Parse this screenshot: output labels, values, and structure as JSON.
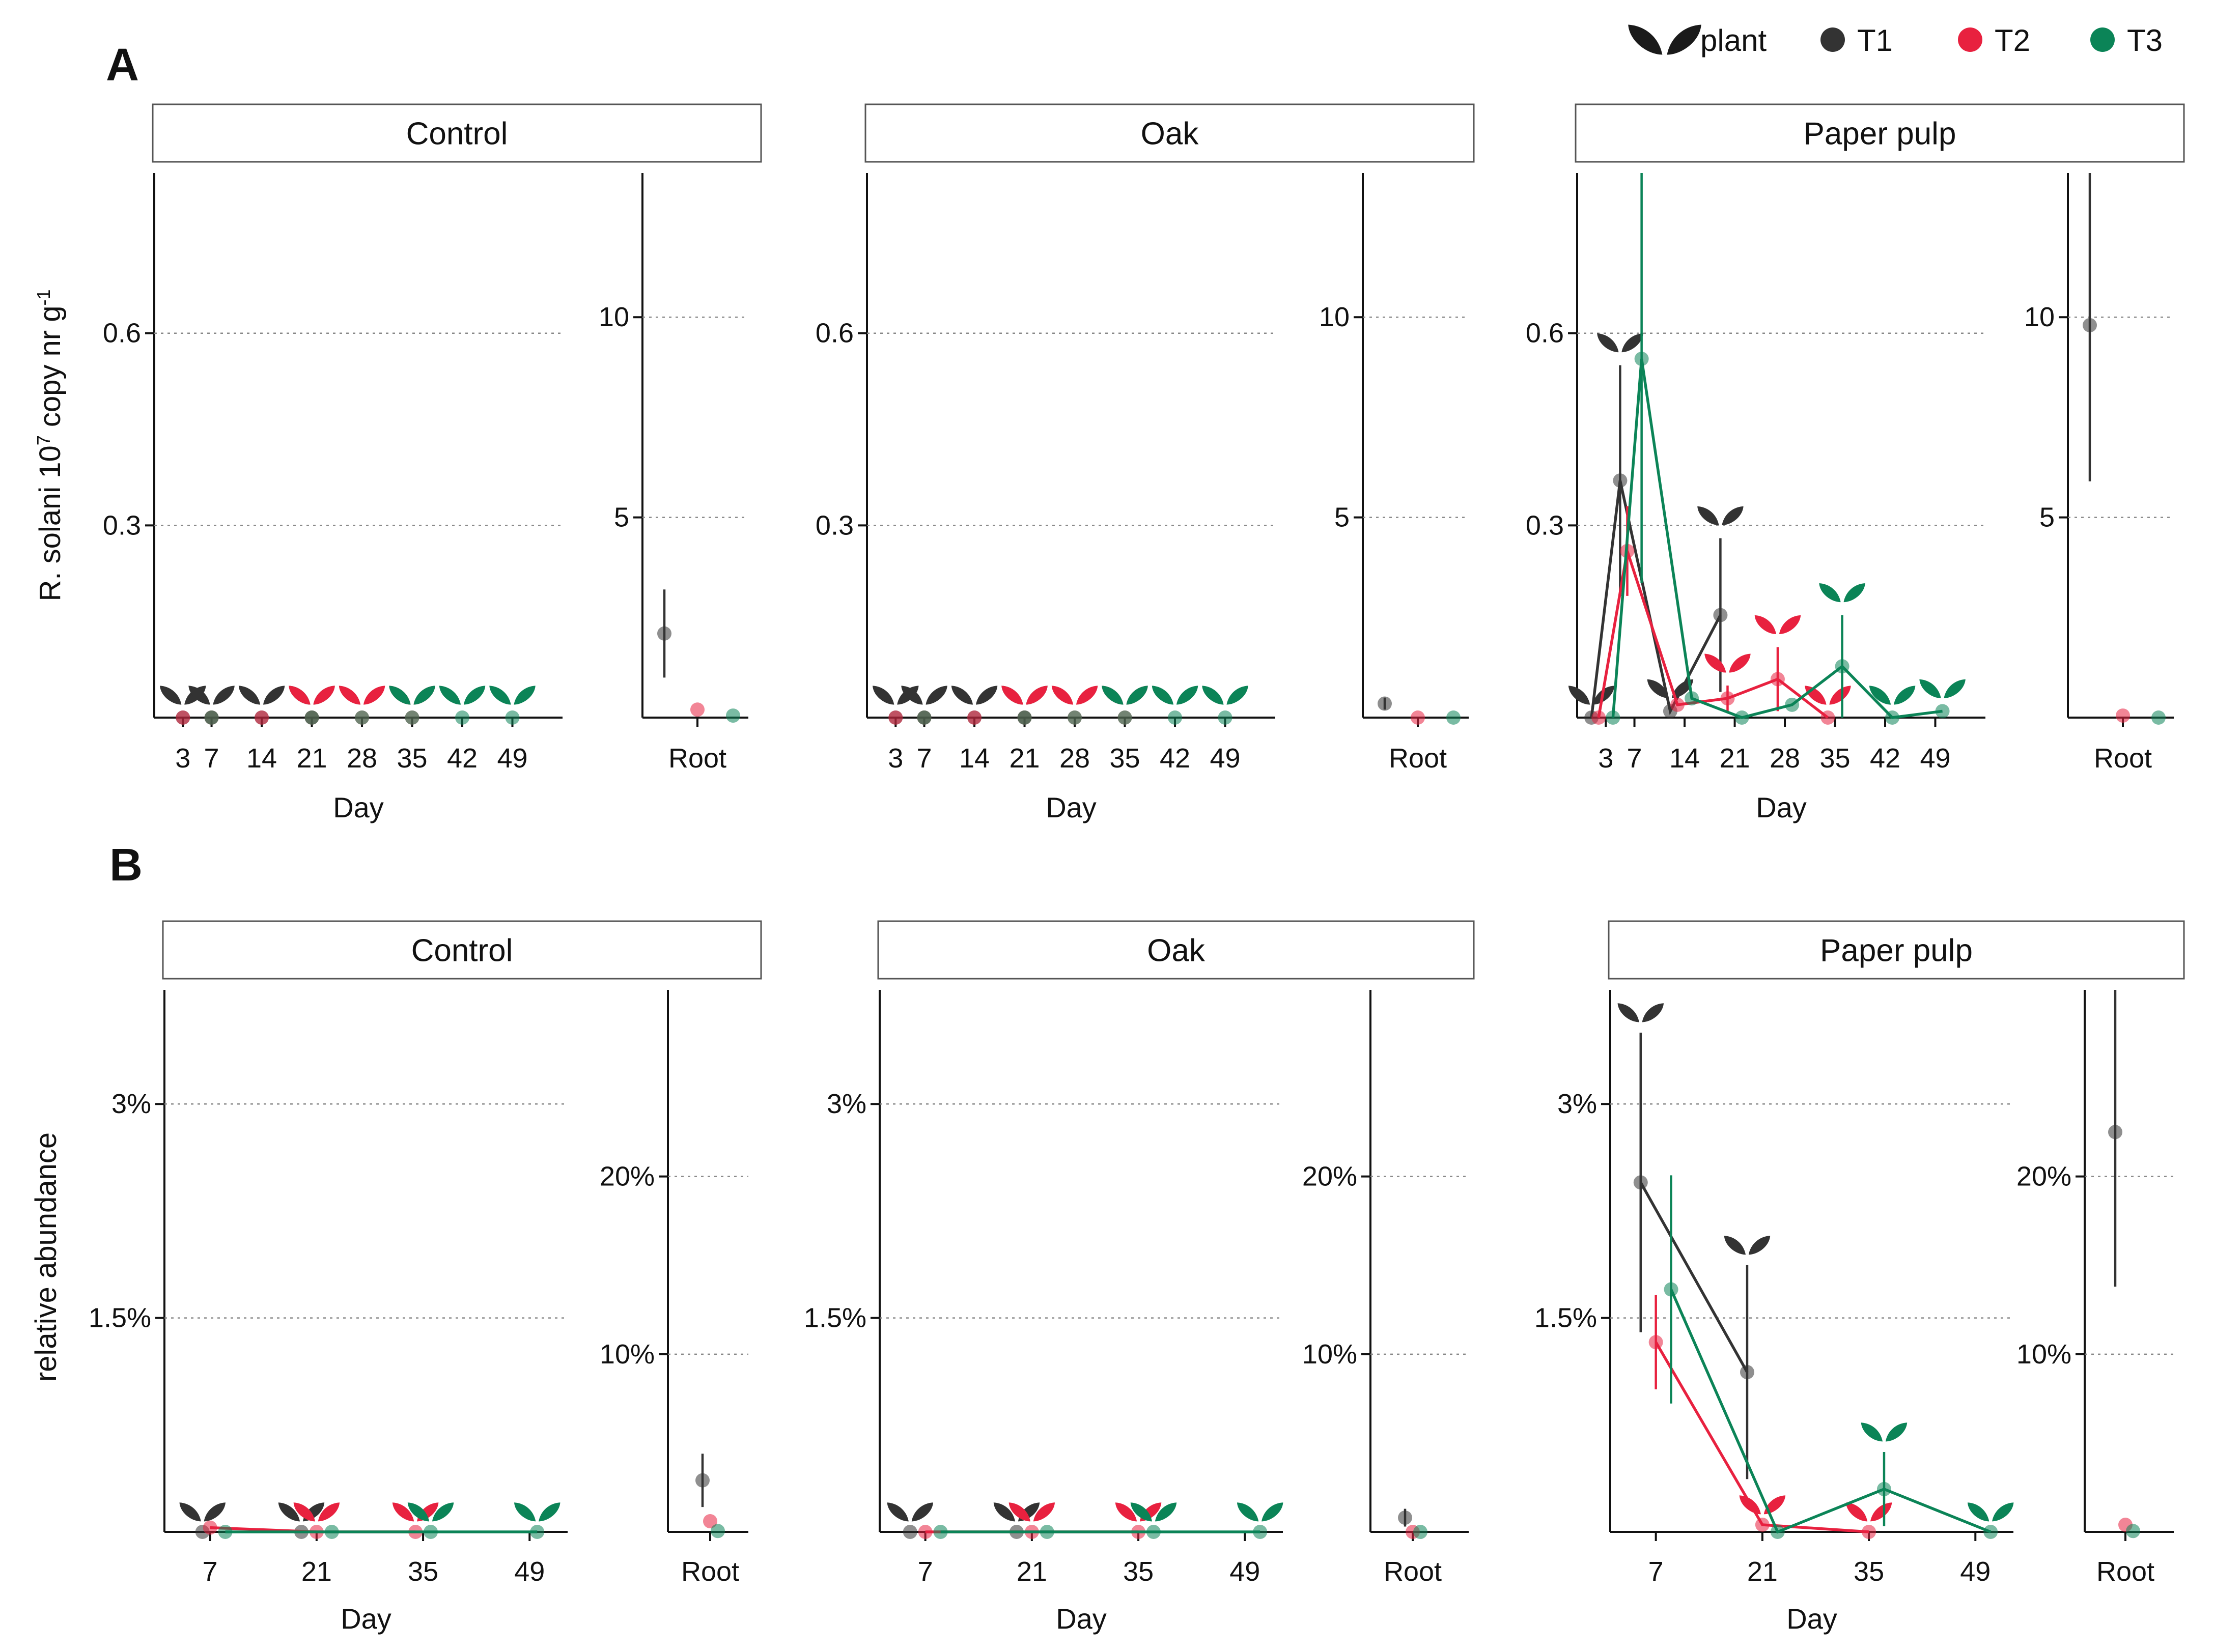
{
  "legend": {
    "items": [
      {
        "label": "plant",
        "kind": "plant",
        "color": "#1a1a1a"
      },
      {
        "label": "T1",
        "kind": "dot",
        "color": "#333333"
      },
      {
        "label": "T2",
        "kind": "dot",
        "color": "#e8213f"
      },
      {
        "label": "T3",
        "kind": "dot",
        "color": "#0b8457"
      }
    ]
  },
  "colors": {
    "T1": "#333333",
    "T2": "#e8213f",
    "T3": "#0b8457",
    "axis": "#111111",
    "grid": "#888888",
    "strip_bg": "#ffffff",
    "strip_border": "#555555"
  },
  "chart_data": [
    {
      "panel": "A",
      "type": "line",
      "ylabel": "R. solani 10^7 copy nr g^-1",
      "xlabel": "Day",
      "day_ticks": [
        3,
        7,
        14,
        21,
        28,
        35,
        42,
        49
      ],
      "day_range": [
        -1,
        56
      ],
      "day_ylim": [
        0,
        0.85
      ],
      "day_yticks": [
        0.3,
        0.6
      ],
      "day_ytick_labels": [
        "0.3",
        "0.6"
      ],
      "root_label": "Root",
      "root_ylim": [
        0,
        13.6
      ],
      "root_yticks": [
        5,
        10
      ],
      "root_ytick_labels": [
        "5",
        "10"
      ],
      "plant_marker_offset": 0.035,
      "facets": [
        {
          "name": "Control",
          "series": [
            {
              "name": "T1",
              "x": [
                3,
                7,
                14,
                21
              ],
              "y": [
                0,
                0,
                0,
                0
              ],
              "err": [
                0,
                0,
                0,
                0
              ],
              "plant_days": [
                3,
                7,
                14,
                21
              ],
              "lines": false
            },
            {
              "name": "T2",
              "x": [
                3,
                7,
                14,
                21,
                28,
                35
              ],
              "y": [
                0,
                0,
                0,
                0,
                0,
                0
              ],
              "err": [
                0,
                0,
                0,
                0,
                0,
                0
              ],
              "plant_days": [
                21,
                28,
                35
              ],
              "lines": false
            },
            {
              "name": "T3",
              "x": [
                7,
                21,
                28,
                35,
                42,
                49
              ],
              "y": [
                0,
                0,
                0,
                0,
                0,
                0
              ],
              "err": [
                0,
                0,
                0,
                0,
                0,
                0
              ],
              "plant_days": [
                35,
                42,
                49
              ],
              "lines": false
            }
          ],
          "root": [
            {
              "name": "T1",
              "y": 2.1,
              "err": 1.1
            },
            {
              "name": "T2",
              "y": 0.2,
              "err": 0
            },
            {
              "name": "T3",
              "y": 0.05,
              "err": 0
            }
          ]
        },
        {
          "name": "Oak",
          "series": [
            {
              "name": "T1",
              "x": [
                3,
                7,
                14,
                21
              ],
              "y": [
                0,
                0,
                0,
                0
              ],
              "err": [
                0,
                0,
                0,
                0
              ],
              "plant_days": [
                3,
                7,
                14,
                21
              ],
              "lines": false
            },
            {
              "name": "T2",
              "x": [
                3,
                7,
                14,
                21,
                28,
                35
              ],
              "y": [
                0,
                0,
                0,
                0,
                0,
                0
              ],
              "err": [
                0,
                0,
                0,
                0,
                0,
                0
              ],
              "plant_days": [
                21,
                28,
                35
              ],
              "lines": false
            },
            {
              "name": "T3",
              "x": [
                7,
                21,
                28,
                35,
                42,
                49
              ],
              "y": [
                0,
                0,
                0,
                0,
                0,
                0
              ],
              "err": [
                0,
                0,
                0,
                0,
                0,
                0
              ],
              "plant_days": [
                35,
                42,
                49
              ],
              "lines": false
            }
          ],
          "root": [
            {
              "name": "T1",
              "y": 0.35,
              "err": 0.15
            },
            {
              "name": "T2",
              "y": 0.0,
              "err": 0
            },
            {
              "name": "T3",
              "y": 0.0,
              "err": 0
            }
          ]
        },
        {
          "name": "Paper pulp",
          "series": [
            {
              "name": "T1",
              "x": [
                1,
                5,
                12,
                19
              ],
              "y": [
                0,
                0.37,
                0.01,
                0.16
              ],
              "err": [
                0,
                0.18,
                0,
                0.12
              ],
              "plant_days": [
                1,
                5,
                12,
                19
              ],
              "lines": true
            },
            {
              "name": "T2",
              "x": [
                2,
                6,
                13,
                20,
                27,
                34
              ],
              "y": [
                0,
                0.26,
                0.02,
                0.03,
                0.06,
                0
              ],
              "err": [
                0,
                0.07,
                0,
                0.02,
                0.05,
                0
              ],
              "plant_days": [
                20,
                27,
                34
              ],
              "lines": true
            },
            {
              "name": "T3",
              "x": [
                4,
                8,
                15,
                22,
                29,
                36,
                43,
                50
              ],
              "y": [
                0,
                0.56,
                0.03,
                0,
                0.02,
                0.08,
                0,
                0.01
              ],
              "err": [
                0,
                0.35,
                0,
                0,
                0,
                0.08,
                0,
                0
              ],
              "plant_days": [
                36,
                43,
                50
              ],
              "lines": true
            }
          ],
          "root": [
            {
              "name": "T1",
              "y": 9.8,
              "err": 3.9
            },
            {
              "name": "T2",
              "y": 0.05,
              "err": 0
            },
            {
              "name": "T3",
              "y": 0.0,
              "err": 0
            }
          ]
        }
      ]
    },
    {
      "panel": "B",
      "type": "line",
      "ylabel": "relative abundance",
      "xlabel": "Day",
      "day_ticks": [
        7,
        21,
        35,
        49
      ],
      "day_range": [
        1,
        54
      ],
      "day_ylim": [
        0,
        3.8
      ],
      "day_yticks": [
        1.5,
        3
      ],
      "day_ytick_labels": [
        "1.5%",
        "3%"
      ],
      "root_label": "Root",
      "root_ylim": [
        0,
        30.5
      ],
      "root_yticks": [
        10,
        20
      ],
      "root_ytick_labels": [
        "10%",
        "20%"
      ],
      "plant_marker_offset": 0.14,
      "facets": [
        {
          "name": "Control",
          "series": [
            {
              "name": "T1",
              "x": [
                6,
                19
              ],
              "y": [
                0,
                0
              ],
              "err": [
                0,
                0
              ],
              "plant_days": [
                6,
                19
              ],
              "lines": false
            },
            {
              "name": "T2",
              "x": [
                7,
                21,
                34
              ],
              "y": [
                0.03,
                0,
                0
              ],
              "err": [
                0,
                0,
                0
              ],
              "plant_days": [
                21,
                34
              ],
              "lines": true
            },
            {
              "name": "T3",
              "x": [
                9,
                23,
                36,
                50
              ],
              "y": [
                0,
                0,
                0,
                0
              ],
              "err": [
                0,
                0,
                0,
                0
              ],
              "plant_days": [
                36,
                50
              ],
              "lines": true
            }
          ],
          "root": [
            {
              "name": "T1",
              "y": 2.9,
              "err": 1.5
            },
            {
              "name": "T2",
              "y": 0.6,
              "err": 0
            },
            {
              "name": "T3",
              "y": 0.05,
              "err": 0
            }
          ]
        },
        {
          "name": "Oak",
          "series": [
            {
              "name": "T1",
              "x": [
                5,
                19
              ],
              "y": [
                0,
                0
              ],
              "err": [
                0,
                0
              ],
              "plant_days": [
                5,
                19
              ],
              "lines": false
            },
            {
              "name": "T2",
              "x": [
                7,
                21,
                35
              ],
              "y": [
                0,
                0,
                0
              ],
              "err": [
                0,
                0,
                0
              ],
              "plant_days": [
                21,
                35
              ],
              "lines": true
            },
            {
              "name": "T3",
              "x": [
                9,
                23,
                37,
                51
              ],
              "y": [
                0,
                0,
                0,
                0
              ],
              "err": [
                0,
                0,
                0,
                0
              ],
              "plant_days": [
                37,
                51
              ],
              "lines": true
            }
          ],
          "root": [
            {
              "name": "T1",
              "y": 0.8,
              "err": 0.5
            },
            {
              "name": "T2",
              "y": 0.0,
              "err": 0
            },
            {
              "name": "T3",
              "y": 0.0,
              "err": 0
            }
          ]
        },
        {
          "name": "Paper pulp",
          "series": [
            {
              "name": "T1",
              "x": [
                5,
                19
              ],
              "y": [
                2.45,
                1.12
              ],
              "err": [
                1.05,
                0.75
              ],
              "plant_days": [
                5,
                19
              ],
              "lines": true
            },
            {
              "name": "T2",
              "x": [
                7,
                21,
                35
              ],
              "y": [
                1.33,
                0.05,
                0
              ],
              "err": [
                0.33,
                0,
                0
              ],
              "plant_days": [
                21,
                35
              ],
              "lines": true
            },
            {
              "name": "T3",
              "x": [
                9,
                23,
                37,
                51
              ],
              "y": [
                1.7,
                0,
                0.3,
                0
              ],
              "err": [
                0.8,
                0,
                0.26,
                0
              ],
              "plant_days": [
                37,
                51
              ],
              "lines": true
            }
          ],
          "root": [
            {
              "name": "T1",
              "y": 22.5,
              "err": 8.7
            },
            {
              "name": "T2",
              "y": 0.4,
              "err": 0
            },
            {
              "name": "T3",
              "y": 0.05,
              "err": 0
            }
          ]
        }
      ]
    }
  ]
}
